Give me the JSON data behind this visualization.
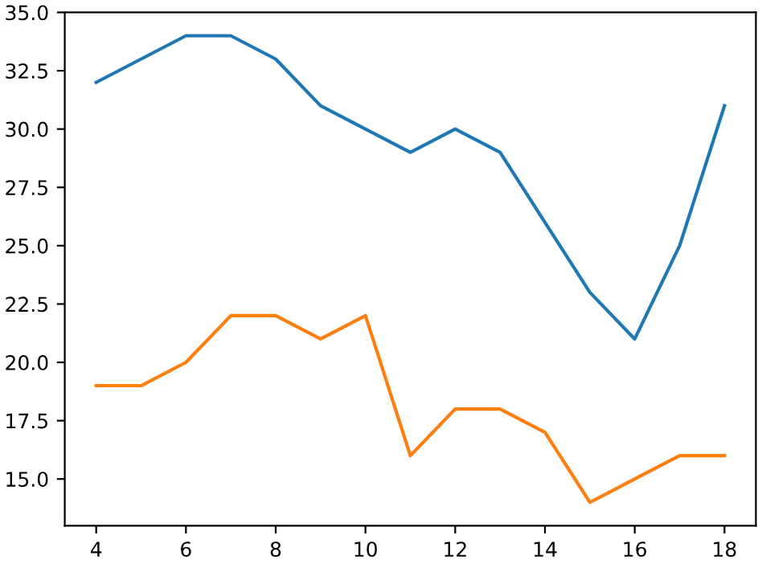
{
  "chart_data": {
    "type": "line",
    "x": [
      4,
      5,
      6,
      7,
      8,
      9,
      10,
      11,
      12,
      13,
      14,
      15,
      16,
      17,
      18
    ],
    "series": [
      {
        "color": "#1f77b4",
        "values": [
          32,
          33,
          34,
          34,
          33,
          31,
          30,
          29,
          30,
          29,
          26,
          23,
          21,
          25,
          31
        ]
      },
      {
        "color": "#ff7f0e",
        "values": [
          19,
          19,
          20,
          22,
          22,
          21,
          22,
          16,
          18,
          18,
          17,
          14,
          15,
          16,
          16
        ]
      }
    ],
    "xlim": [
      3.3,
      18.7
    ],
    "ylim": [
      13,
      35
    ],
    "xticks": [
      4,
      6,
      8,
      10,
      12,
      14,
      16,
      18
    ],
    "yticks": [
      {
        "value": 15,
        "label": "15.0"
      },
      {
        "value": 17.5,
        "label": "17.5"
      },
      {
        "value": 20,
        "label": "20.0"
      },
      {
        "value": 22.5,
        "label": "22.5"
      },
      {
        "value": 25,
        "label": "25.0"
      },
      {
        "value": 27.5,
        "label": "27.5"
      },
      {
        "value": 30,
        "label": "30.0"
      },
      {
        "value": 32.5,
        "label": "32.5"
      },
      {
        "value": 35,
        "label": "35.0"
      }
    ],
    "grid": false
  }
}
